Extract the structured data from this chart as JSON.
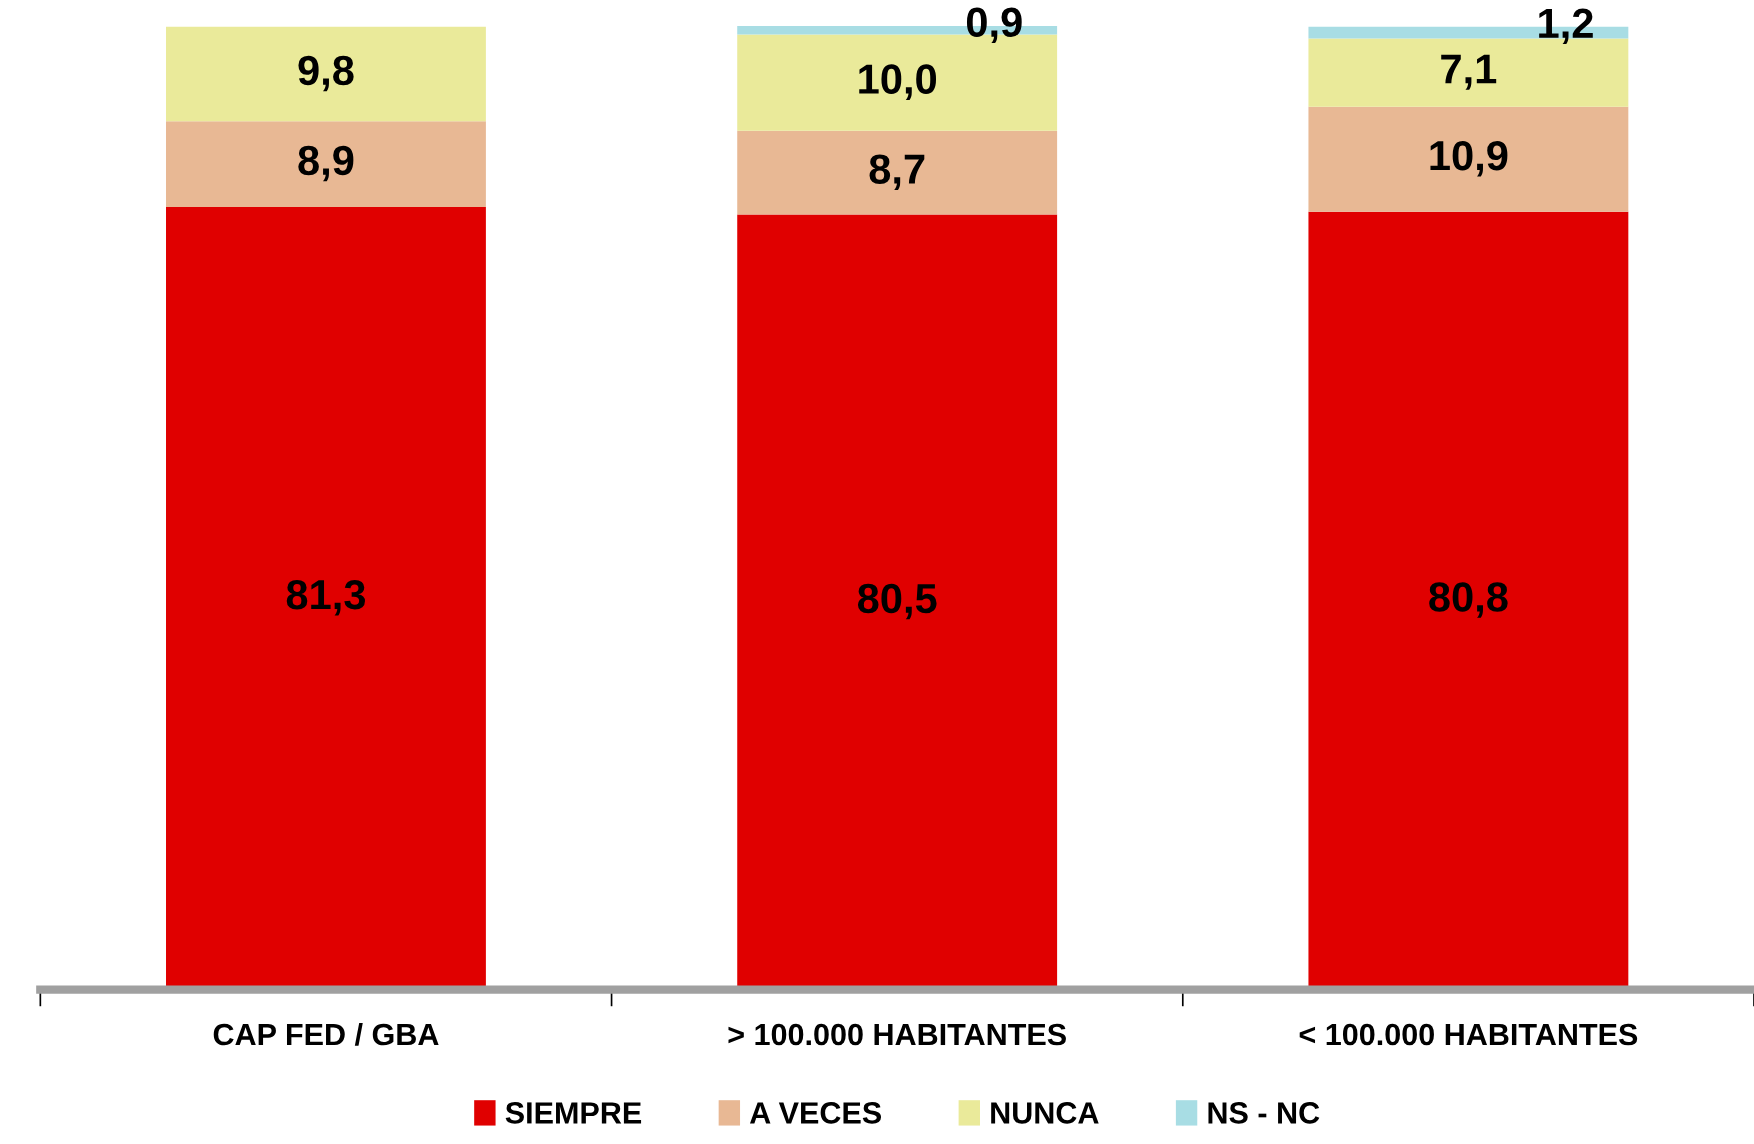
{
  "chart_data": {
    "type": "bar",
    "stacked": true,
    "legend": "bottom",
    "grid": false,
    "categories": [
      "CAP FED / GBA",
      "> 100.000 HABITANTES",
      "< 100.000 HABITANTES"
    ],
    "series": [
      {
        "name": "SIEMPRE",
        "color": "#e00000",
        "values": [
          81.3,
          80.5,
          80.8
        ],
        "value_labels": [
          "81,3",
          "80,5",
          "80,8"
        ]
      },
      {
        "name": "A VECES",
        "color": "#e8b894",
        "values": [
          8.9,
          8.7,
          10.9
        ],
        "value_labels": [
          "8,9",
          "8,7",
          "10,9"
        ]
      },
      {
        "name": "NUNCA",
        "color": "#eaea9a",
        "values": [
          9.8,
          10.0,
          7.1
        ],
        "value_labels": [
          "9,8",
          "10,0",
          "7,1"
        ]
      },
      {
        "name": "NS - NC",
        "color": "#a8dde4",
        "values": [
          null,
          0.9,
          1.2
        ],
        "value_labels": [
          null,
          "0,9",
          "1,2"
        ]
      }
    ]
  }
}
